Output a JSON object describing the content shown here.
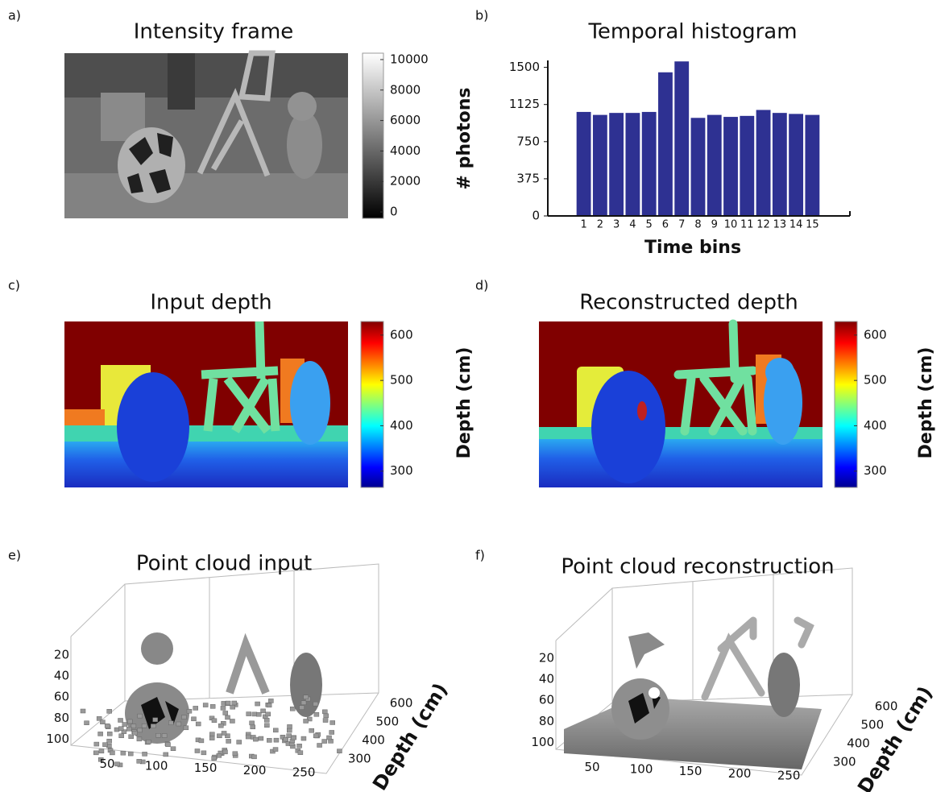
{
  "chart_data": [
    {
      "type": "image",
      "label": "a)",
      "title": "Intensity frame",
      "colormap": "gray",
      "clim": [
        -420,
        10420
      ],
      "cticks": [
        0,
        2000,
        4000,
        6000,
        8000,
        10000
      ]
    },
    {
      "type": "bar",
      "label": "b)",
      "title": "Temporal histogram",
      "xlabel": "Time bins",
      "ylabel": "# photons",
      "x": [
        1,
        2,
        3,
        4,
        5,
        6,
        7,
        8,
        9,
        10,
        11,
        12,
        13,
        14,
        15
      ],
      "values": [
        1050,
        1020,
        1040,
        1040,
        1050,
        1450,
        1560,
        990,
        1020,
        1000,
        1010,
        1070,
        1040,
        1030,
        1020
      ],
      "color": "#2e3192",
      "xlim": [
        -1.2,
        17.3
      ],
      "xticks": [
        1,
        2,
        3,
        4,
        5,
        6,
        7,
        8,
        9,
        10,
        11,
        12,
        13,
        14,
        15
      ],
      "ylim": [
        0,
        1570
      ],
      "yticks": [
        0,
        375,
        750,
        1125,
        1500
      ]
    },
    {
      "type": "image",
      "label": "c)",
      "title": "Input depth",
      "colormap": "jet",
      "clim": [
        264,
        630
      ],
      "cticks": [
        300,
        400,
        500,
        600
      ],
      "clabel": "Depth (cm)"
    },
    {
      "type": "image",
      "label": "d)",
      "title": "Reconstructed depth",
      "colormap": "jet",
      "clim": [
        264,
        630
      ],
      "cticks": [
        300,
        400,
        500,
        600
      ],
      "clabel": "Depth (cm)"
    },
    {
      "type": "scatter3d",
      "label": "e)",
      "title": "Point cloud input",
      "xlim": [
        0,
        272
      ],
      "xticks": [
        50,
        100,
        150,
        200,
        250
      ],
      "ylim": [
        0,
        112
      ],
      "yticks": [
        20,
        40,
        60,
        80,
        100
      ],
      "zlim": [
        260,
        630
      ],
      "zticks": [
        300,
        400,
        500,
        600
      ],
      "zlabel": "Depth (cm)"
    },
    {
      "type": "scatter3d",
      "label": "f)",
      "title": "Point cloud reconstruction",
      "xlim": [
        0,
        272
      ],
      "xticks": [
        50,
        100,
        150,
        200,
        250
      ],
      "ylim": [
        0,
        112
      ],
      "yticks": [
        20,
        40,
        60,
        80,
        100
      ],
      "zlim": [
        260,
        630
      ],
      "zticks": [
        300,
        400,
        500,
        600
      ],
      "zlabel": "Depth (cm)"
    }
  ]
}
